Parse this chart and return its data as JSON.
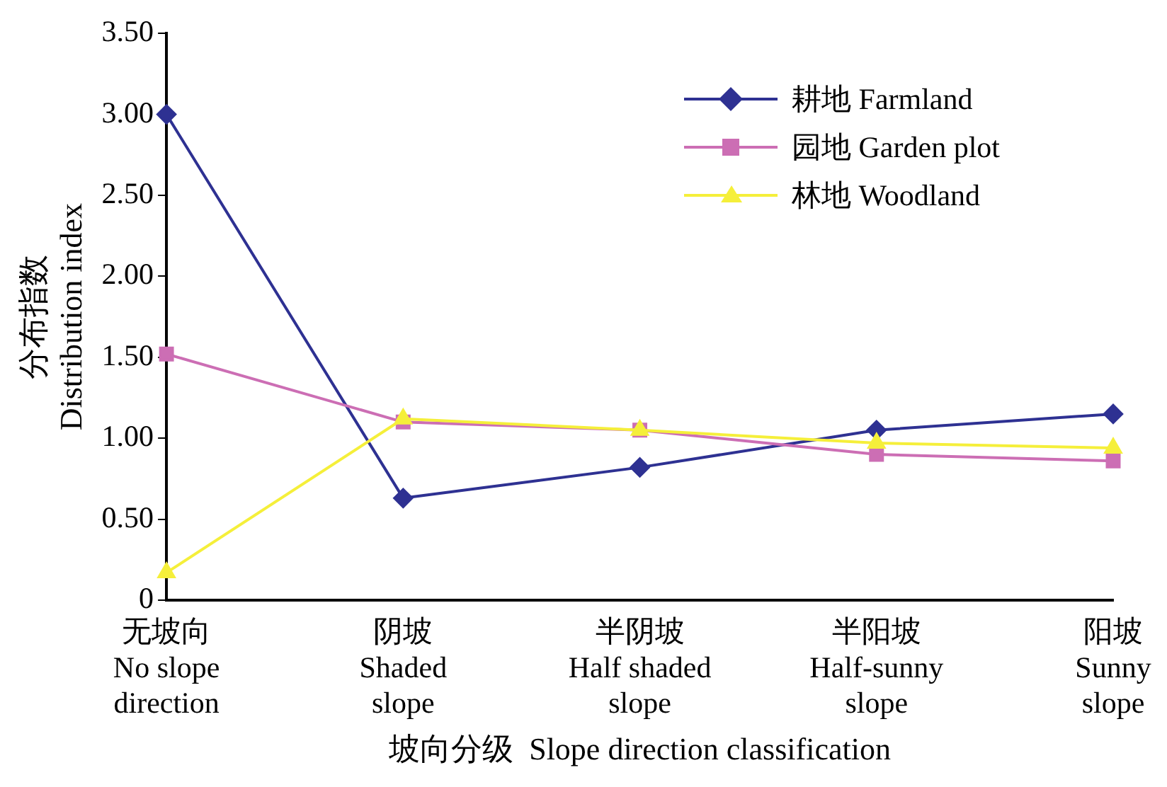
{
  "chart_data": {
    "type": "line",
    "xlabel": "坡向分级  Slope direction classification",
    "ylabel": "分布指数\nDistribution index",
    "categories": [
      "无坡向\nNo slope\ndirection",
      "阴坡\nShaded\nslope",
      "半阴坡\nHalf shaded\nslope",
      "半阳坡\nHalf-sunny\nslope",
      "阳坡\nSunny\nslope"
    ],
    "series": [
      {
        "name": "耕地 Farmland",
        "color": "#2e3192",
        "marker": "diamond",
        "values": [
          3.0,
          0.63,
          0.82,
          1.05,
          1.15
        ]
      },
      {
        "name": "园地 Garden plot",
        "color": "#cc6eb4",
        "marker": "square",
        "values": [
          1.52,
          1.1,
          1.05,
          0.9,
          0.86
        ]
      },
      {
        "name": "林地 Woodland",
        "color": "#f5ef3a",
        "marker": "triangle",
        "values": [
          0.17,
          1.12,
          1.05,
          0.97,
          0.94
        ]
      }
    ],
    "ylim": [
      0,
      3.5
    ],
    "yticks": [
      0,
      {
        "value": 0.5,
        "label": "0.50"
      },
      {
        "value": 1,
        "label": "1.00"
      },
      {
        "value": 1.5,
        "label": "1.50"
      },
      {
        "value": 2,
        "label": "2.00"
      },
      {
        "value": 2.5,
        "label": "2.50"
      },
      {
        "value": 3,
        "label": "3.00"
      },
      {
        "value": 3.5,
        "label": "3.50"
      }
    ],
    "grid": false,
    "legend": "top right",
    "line_style": "solid"
  }
}
